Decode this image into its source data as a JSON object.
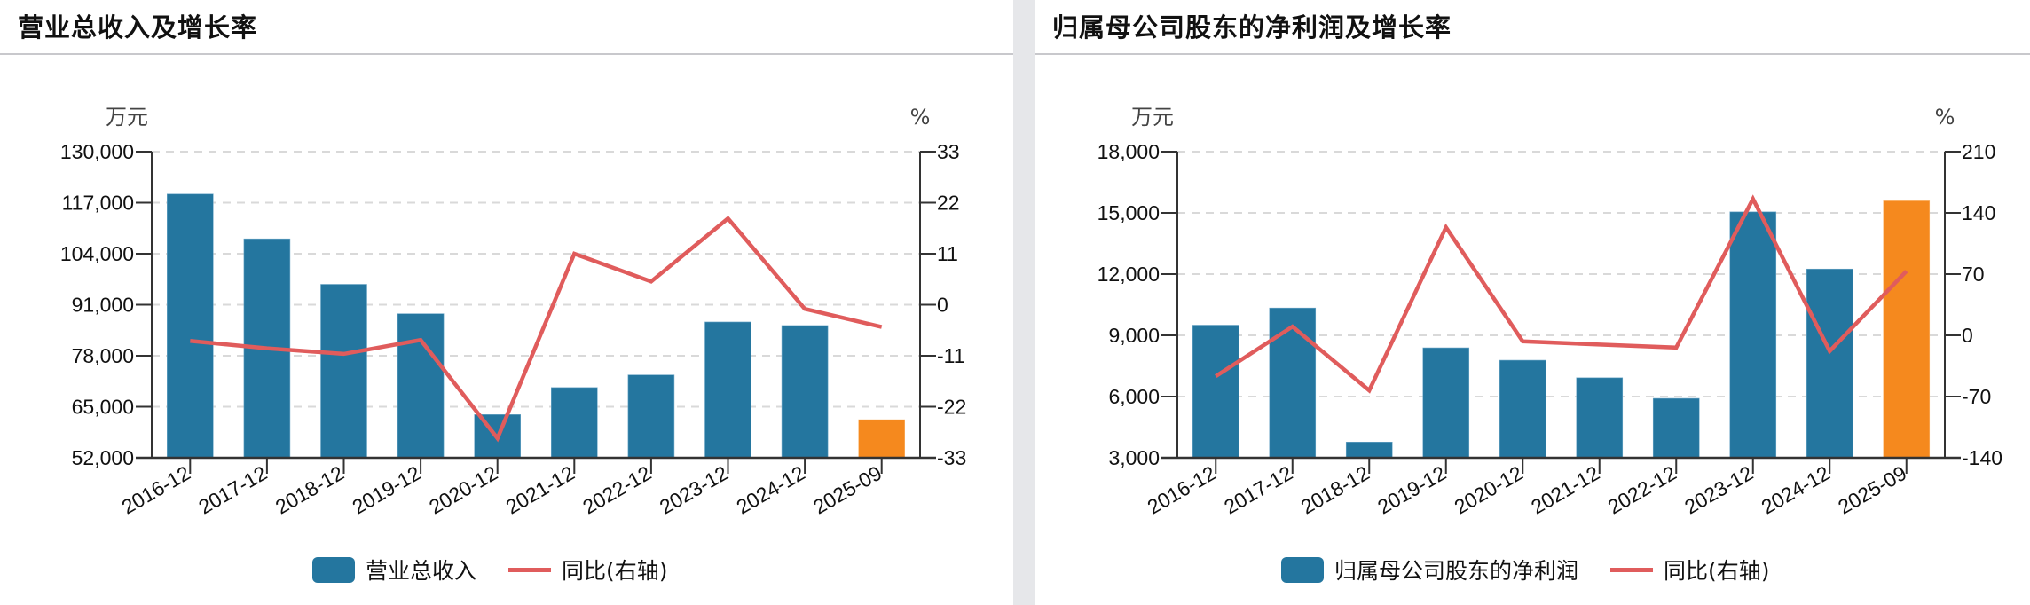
{
  "panels": [
    {
      "title": "营业总收入及增长率",
      "left_unit": "万元",
      "right_unit": "%",
      "legend": {
        "bar_label": "营业总收入",
        "line_label": "同比(右轴)"
      }
    },
    {
      "title": "归属母公司股东的净利润及增长率",
      "left_unit": "万元",
      "right_unit": "%",
      "legend": {
        "bar_label": "归属母公司股东的净利润",
        "line_label": "同比(右轴)"
      }
    }
  ],
  "colors": {
    "bar": "#24769f",
    "bar_highlight": "#f5891e",
    "line": "#e05c5c",
    "grid": "#d9d9d9",
    "axis": "#333333"
  },
  "chart_data": [
    {
      "type": "bar",
      "title": "营业总收入及增长率",
      "categories": [
        "2016-12",
        "2017-12",
        "2018-12",
        "2019-12",
        "2020-12",
        "2021-12",
        "2022-12",
        "2023-12",
        "2024-12",
        "2025-09"
      ],
      "series": [
        {
          "name": "营业总收入",
          "axis": "left",
          "type": "bar",
          "values": [
            119200,
            107800,
            96200,
            88700,
            63000,
            69900,
            73100,
            86600,
            85700,
            61700
          ]
        },
        {
          "name": "同比(右轴)",
          "axis": "right",
          "type": "line",
          "values": [
            -7.8,
            -9.4,
            -10.6,
            -7.6,
            -28.8,
            11.0,
            5.0,
            18.6,
            -0.9,
            -4.8
          ]
        }
      ],
      "highlight_index": 9,
      "ylabel": "万元",
      "y2label": "%",
      "ylim": [
        52000,
        130000
      ],
      "yticks": [
        52000,
        65000,
        78000,
        91000,
        104000,
        117000,
        130000
      ],
      "ytick_labels": [
        "52,000",
        "65,000",
        "78,000",
        "91,000",
        "104,000",
        "117,000",
        "130,000"
      ],
      "y2lim": [
        -33,
        33
      ],
      "y2ticks": [
        -33,
        -22,
        -11,
        0,
        11,
        22,
        33
      ],
      "y2tick_labels": [
        "-33",
        "-22",
        "-11",
        "0",
        "11",
        "22",
        "33"
      ],
      "grid": true,
      "legend_position": "bottom"
    },
    {
      "type": "bar",
      "title": "归属母公司股东的净利润及增长率",
      "categories": [
        "2016-12",
        "2017-12",
        "2018-12",
        "2019-12",
        "2020-12",
        "2021-12",
        "2022-12",
        "2023-12",
        "2024-12",
        "2025-09"
      ],
      "series": [
        {
          "name": "归属母公司股东的净利润",
          "axis": "left",
          "type": "bar",
          "values": [
            9500,
            10340,
            3770,
            8390,
            7780,
            6920,
            5910,
            15050,
            12250,
            15590
          ]
        },
        {
          "name": "同比(右轴)",
          "axis": "right",
          "type": "line",
          "values": [
            -46.8,
            10.0,
            -63.0,
            123.5,
            -6.9,
            -10.5,
            -14.0,
            156.0,
            -18.0,
            73.4
          ]
        }
      ],
      "highlight_index": 9,
      "ylabel": "万元",
      "y2label": "%",
      "ylim": [
        3000,
        18000
      ],
      "yticks": [
        3000,
        6000,
        9000,
        12000,
        15000,
        18000
      ],
      "ytick_labels": [
        "3,000",
        "6,000",
        "9,000",
        "12,000",
        "15,000",
        "18,000"
      ],
      "y2lim": [
        -140,
        210
      ],
      "y2ticks": [
        -140,
        -70,
        0,
        70,
        140,
        210
      ],
      "y2tick_labels": [
        "-140",
        "-70",
        "0",
        "70",
        "140",
        "210"
      ],
      "grid": true,
      "legend_position": "bottom"
    }
  ]
}
